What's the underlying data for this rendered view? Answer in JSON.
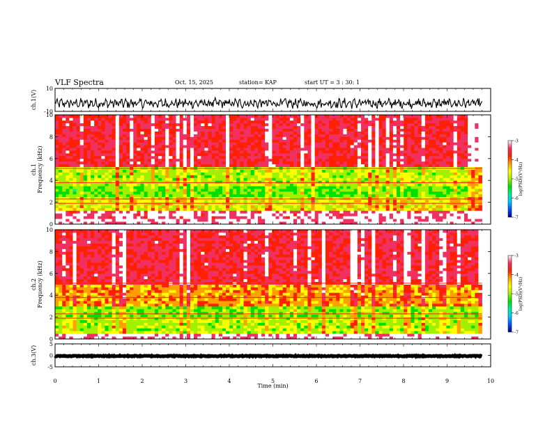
{
  "header": {
    "title": "VLF Spectra",
    "date": "Oct. 15, 2025",
    "station": "station= KAP",
    "start": "start UT =  3 : 30: 1"
  },
  "chart_data": [
    {
      "type": "line",
      "name": "ch1-waveform",
      "ylabel": "ch.1(V)",
      "ylim": [
        -10,
        10
      ],
      "yticks": [
        "10",
        "-10"
      ],
      "xlim": [
        0,
        10
      ],
      "x_extent": 9.8,
      "series": [
        {
          "name": "ch.1",
          "description": "noisy voltage waveform",
          "mean": -3.0,
          "amplitude": 5.0
        }
      ]
    },
    {
      "type": "heatmap",
      "name": "ch1-spectrogram",
      "ylabel": "ch.1 Frequency (kHz)",
      "ylim": [
        0,
        10
      ],
      "yticks": [
        "0",
        "2",
        "4",
        "6",
        "8",
        "10"
      ],
      "xlim": [
        0,
        10
      ],
      "x_extent": 9.8,
      "zlim": [
        -7,
        -3
      ],
      "bands": [
        {
          "from": 0,
          "to": 1.2,
          "level": -3.4
        },
        {
          "from": 1.2,
          "to": 2.6,
          "level": -4.7
        },
        {
          "from": 2.6,
          "to": 3.4,
          "level": -5.2
        },
        {
          "from": 3.4,
          "to": 5.2,
          "level": -4.9
        },
        {
          "from": 5.2,
          "to": 10,
          "level": -3.7
        }
      ]
    },
    {
      "type": "heatmap",
      "name": "ch2-spectrogram",
      "ylabel": "ch.2 Frequency (kHz)",
      "ylim": [
        0,
        10
      ],
      "yticks": [
        "0",
        "2",
        "4",
        "6",
        "8",
        "10"
      ],
      "xlim": [
        0,
        10
      ],
      "x_extent": 9.8,
      "zlim": [
        -7,
        -3
      ],
      "bands": [
        {
          "from": 0,
          "to": 0.6,
          "level": -4.0
        },
        {
          "from": 0.6,
          "to": 2.0,
          "level": -4.9
        },
        {
          "from": 2.0,
          "to": 3.0,
          "level": -5.1
        },
        {
          "from": 3.0,
          "to": 5.0,
          "level": -4.3
        },
        {
          "from": 5.0,
          "to": 10,
          "level": -3.7
        }
      ]
    },
    {
      "type": "line",
      "name": "ch3-waveform",
      "ylabel": "ch.3(V)",
      "ylim": [
        -5,
        5
      ],
      "yticks": [
        "5",
        "0",
        "-5"
      ],
      "xlim": [
        0,
        10
      ],
      "x_extent": 9.8,
      "xlabel": "Time (min)",
      "xticks": [
        "0",
        "1",
        "2",
        "3",
        "4",
        "5",
        "6",
        "7",
        "8",
        "9",
        "10"
      ],
      "series": [
        {
          "name": "ch.3",
          "description": "near-constant trace",
          "mean": -0.3,
          "amplitude": 0.4
        }
      ]
    }
  ],
  "colorbar": {
    "label": "log(PSD)(V²/Hz)",
    "ticks": [
      "-3",
      "-4",
      "-5",
      "-6",
      "-7"
    ],
    "range": [
      -7,
      -3
    ],
    "colors": [
      "#000090",
      "#0050ff",
      "#00c8ff",
      "#00f0a0",
      "#00e000",
      "#a0f000",
      "#ffff00",
      "#ffa000",
      "#ff2000",
      "#f03060",
      "#ffffff"
    ]
  }
}
